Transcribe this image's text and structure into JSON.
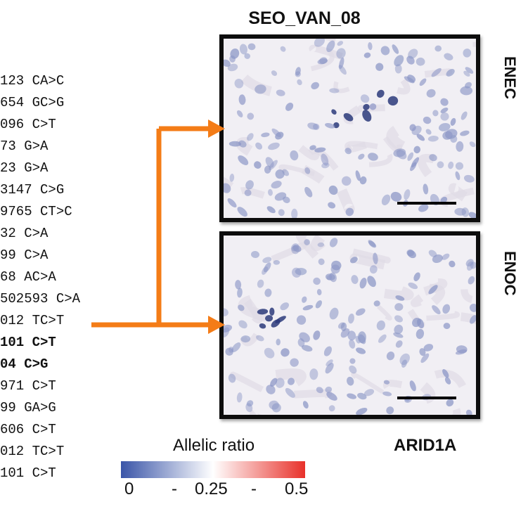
{
  "sample_id": "SEO_VAN_08",
  "mutations": [
    {
      "text": "123 CA>C",
      "bold": false
    },
    {
      "text": "654 GC>G",
      "bold": false
    },
    {
      "text": "096 C>T",
      "bold": false
    },
    {
      "text": "73 G>A",
      "bold": false
    },
    {
      "text": "23 G>A",
      "bold": false
    },
    {
      "text": "3147 C>G",
      "bold": false
    },
    {
      "text": "9765 CT>C",
      "bold": false
    },
    {
      "text": "32 C>A",
      "bold": false
    },
    {
      "text": "99 C>A",
      "bold": false
    },
    {
      "text": "68 AC>A",
      "bold": false
    },
    {
      "text": "502593 C>A",
      "bold": false
    },
    {
      "text": "012 TC>T",
      "bold": false
    },
    {
      "text": "101 C>T",
      "bold": true
    },
    {
      "text": "04 C>G",
      "bold": true
    },
    {
      "text": "971 C>T",
      "bold": false
    },
    {
      "text": "99 GA>G",
      "bold": false
    },
    {
      "text": "606 C>T",
      "bold": false
    },
    {
      "text": "012 TC>T",
      "bold": false
    },
    {
      "text": "101 C>T",
      "bold": false
    }
  ],
  "panels": {
    "top": {
      "label": "ENEC"
    },
    "bottom": {
      "label": "ENOC"
    }
  },
  "gene": "ARID1A",
  "legend": {
    "title": "Allelic ratio",
    "ticks": [
      "0",
      "-",
      "0.25",
      "-",
      "0.5"
    ],
    "colors": {
      "low": "#3a55a8",
      "mid": "#ffffff",
      "high": "#e8312a"
    }
  },
  "colors": {
    "arrow": "#f47c17",
    "panel_border": "#0d0d0d",
    "tissue_bg": "#f1eff4",
    "nuclei": "#8b96c6"
  }
}
